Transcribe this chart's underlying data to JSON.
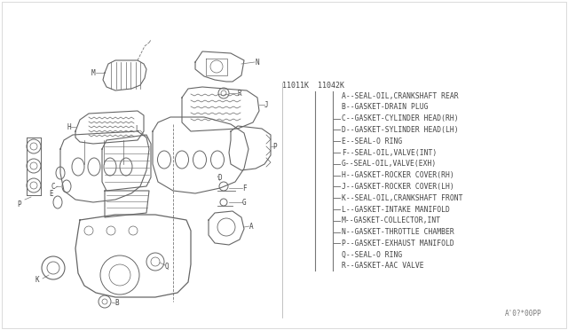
{
  "bg_color": "#ffffff",
  "fig_width": 6.4,
  "fig_height": 3.72,
  "dpi": 100,
  "part_codes_left": "11011K",
  "part_codes_right": "11042K",
  "legend_items": [
    "A--SEAL-×OIL,CRANKSHAFT REAR",
    "B--GASKET-DRAIN PLUG",
    "C--GASKET-CYLINDER HEAD(RH)",
    "D--GASKET-SYLINDER HEAD(LH)",
    "E--SEAL-× RING",
    "F--SEAL-×OIL,VALVE(INT)",
    "G--SEAL-×OIL,VALVE(EXH)",
    "H--GASKET-ROCKER COVER(RH)",
    "J--GASKET-ROCKER COVER(LH)",
    "K--SEAL-×OIL,CRANKSHAFT FRONT",
    "L--GASKET-INTAKE MANIFOLD",
    "M--GASKET-COLLECTOR,INT",
    "N--GASKET-THROTTLE CHAMBER",
    "P--GASKET-EXHAUST MANIFOLD",
    "Q--SEAL-× RING",
    "R--GASKET-AAC VALVE"
  ],
  "legend_items_plain": [
    "A--SEAL-OIL,CRANKSHAFT REAR",
    "B--GASKET-DRAIN PLUG",
    "C--GASKET-CYLINDER HEAD(RH)",
    "D--GASKET-SYLINDER HEAD(LH)",
    "E--SEAL-O RING",
    "F--SEAL-OIL,VALVE(INT)",
    "G--SEAL-OIL,VALVE(EXH)",
    "H--GASKET-ROCKER COVER(RH)",
    "J--GASKET-ROCKER COVER(LH)",
    "K--SEAL-OIL,CRANKSHAFT FRONT",
    "L--GASKET-INTAKE MANIFOLD",
    "M--GASKET-COLLECTOR,INT",
    "N--GASKET-THROTTLE CHAMBER",
    "P--GASKET-EXHAUST MANIFOLD",
    "Q--SEAL-O RING",
    "R--GASKET-AAC VALVE"
  ],
  "footnote": "A'0?*00PP",
  "text_color": "#444444",
  "line_color": "#777777",
  "diagram_color": "#666666",
  "label_color": "#444444"
}
